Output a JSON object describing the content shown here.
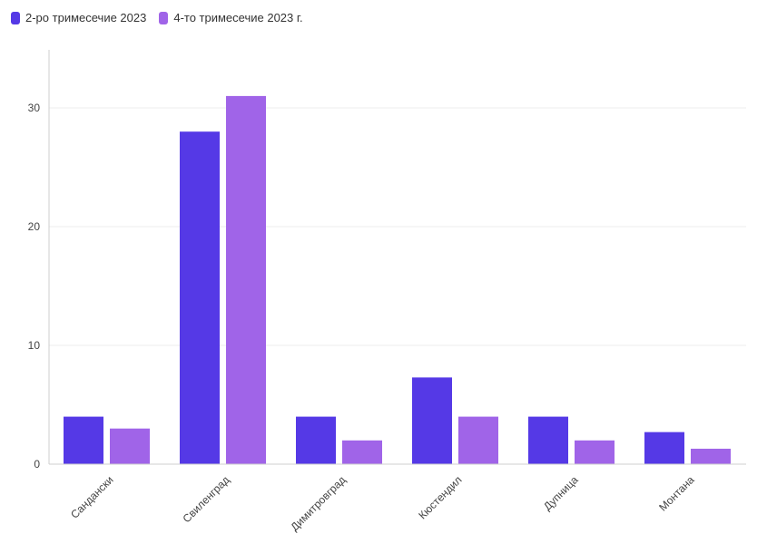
{
  "chart_data": {
    "type": "bar",
    "title": "",
    "xlabel": "",
    "ylabel": "",
    "categories": [
      "Сандански",
      "Свиленград",
      "Димитровград",
      "Кюстендил",
      "Дупница",
      "Монтана"
    ],
    "series": [
      {
        "name": "2-ро тримесечие 2023",
        "color": "#5539e6",
        "values": [
          4,
          28,
          4,
          7.3,
          4,
          2.7
        ]
      },
      {
        "name": "4-то тримесечие 2023 г.",
        "color": "#a064e8",
        "values": [
          3,
          31,
          2,
          4,
          2,
          1.3
        ]
      }
    ],
    "ylim": [
      0,
      35
    ],
    "yticks": [
      0,
      10,
      20,
      30
    ],
    "grid": true,
    "legend": "top-left"
  }
}
